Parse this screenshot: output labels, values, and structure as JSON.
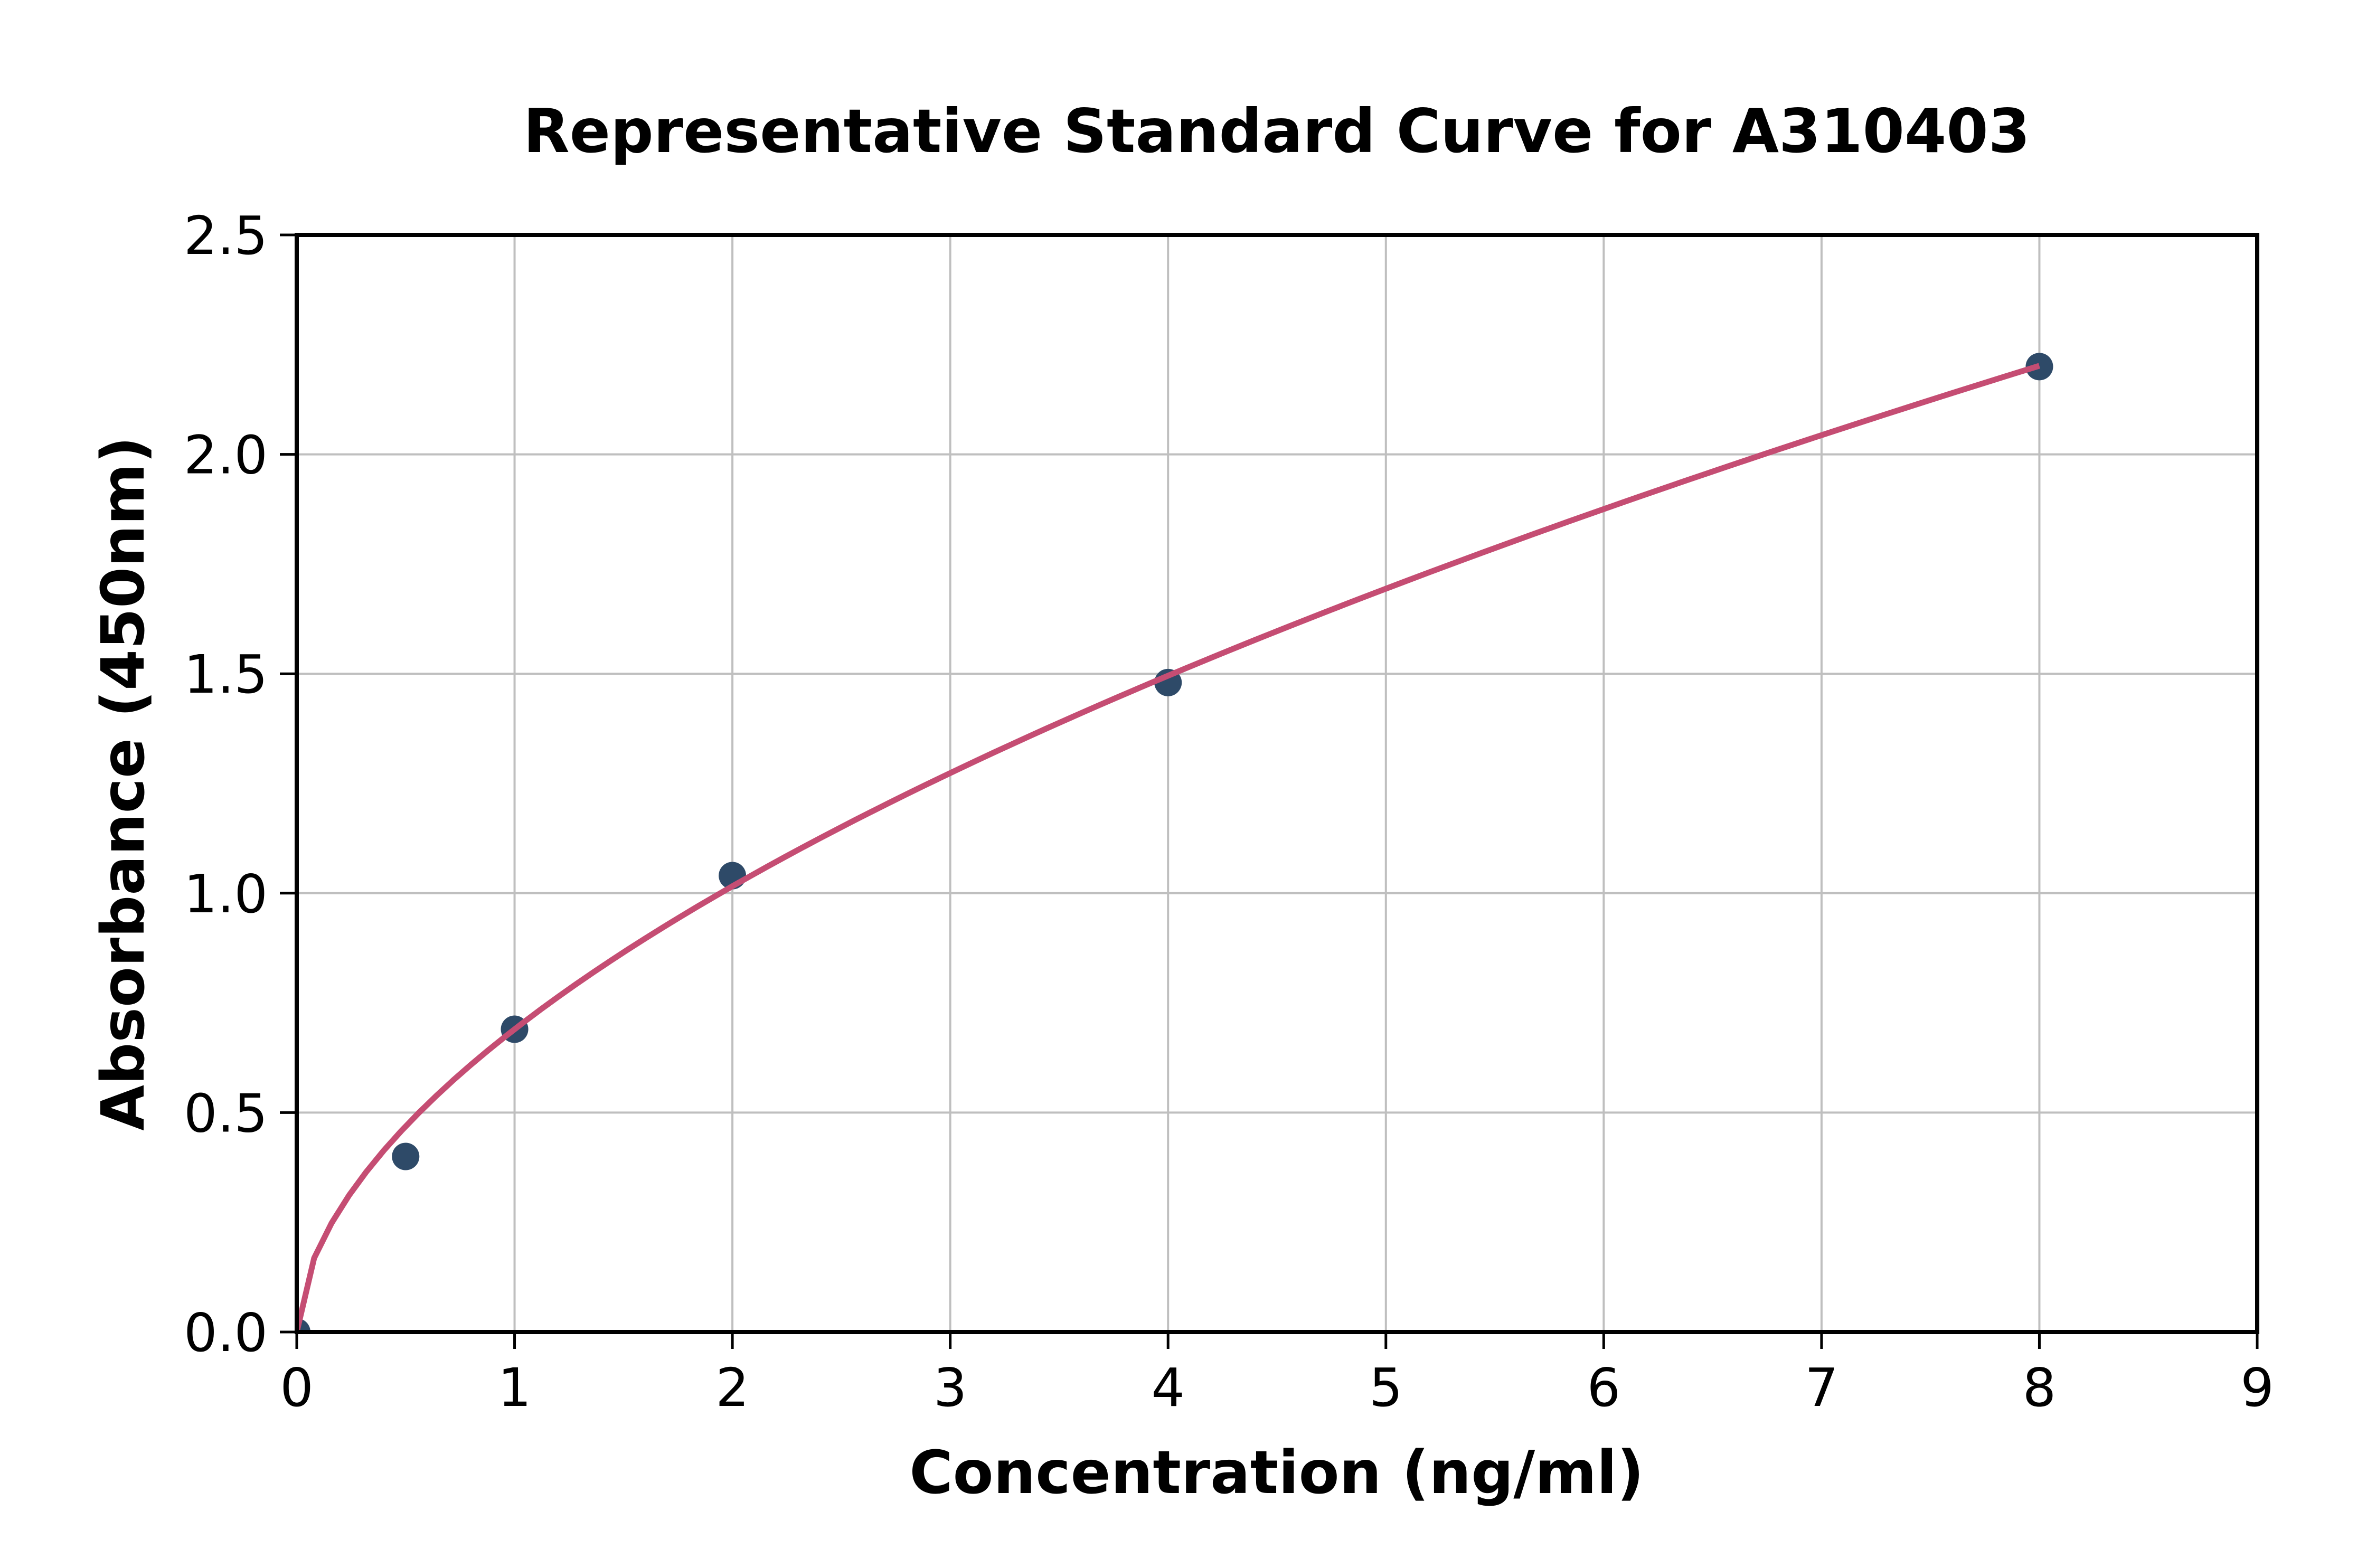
{
  "chart_data": {
    "type": "scatter",
    "title": "Representative Standard Curve for A310403",
    "xlabel": "Concentration (ng/ml)",
    "ylabel": "Absorbance (450nm)",
    "points": {
      "x": [
        0,
        0.5,
        1,
        2,
        4,
        8
      ],
      "y": [
        0.0,
        0.4,
        0.69,
        1.04,
        1.48,
        2.2
      ]
    },
    "fit_curve": {
      "model": "power",
      "equation": "y = 0.69 * x^0.558",
      "a": 0.69,
      "b": 0.558,
      "x_range": [
        0,
        8
      ],
      "n_samples": 101
    },
    "xlim": [
      0,
      9
    ],
    "ylim": [
      0,
      2.5
    ],
    "xtick_values": [
      0,
      1,
      2,
      3,
      4,
      5,
      6,
      7,
      8,
      9
    ],
    "xtick_labels": [
      "0",
      "1",
      "2",
      "3",
      "4",
      "5",
      "6",
      "7",
      "8",
      "9"
    ],
    "ytick_values": [
      0,
      0.5,
      1.0,
      1.5,
      2.0,
      2.5
    ],
    "ytick_labels": [
      "0.0",
      "0.5",
      "1.0",
      "1.5",
      "2.0",
      "2.5"
    ],
    "grid": true,
    "legend": false,
    "colors": {
      "marker": "#2e4a68",
      "line": "#c54d73",
      "grid": "#bfbfbf",
      "axis": "#000000",
      "text": "#000000",
      "background": "#ffffff"
    }
  }
}
